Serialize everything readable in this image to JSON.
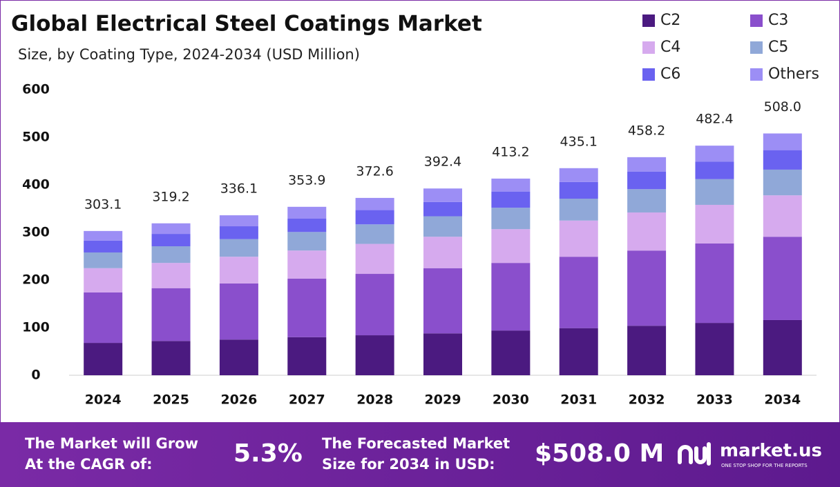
{
  "chart_data": {
    "type": "stacked-bar",
    "title": "Global Electrical Steel Coatings Market",
    "subtitle": "Size, by Coating Type, 2024-2034 (USD Million)",
    "categories": [
      "2024",
      "2025",
      "2026",
      "2027",
      "2028",
      "2029",
      "2030",
      "2031",
      "2032",
      "2033",
      "2034"
    ],
    "series": [
      {
        "name": "C2",
        "color": "#4b1a80",
        "values": [
          68,
          72,
          75,
          80,
          84,
          88,
          94,
          99,
          104,
          110,
          116
        ]
      },
      {
        "name": "C3",
        "color": "#8a4fcc",
        "values": [
          106,
          111,
          118,
          123,
          129,
          137,
          142,
          150,
          158,
          167,
          175
        ]
      },
      {
        "name": "C4",
        "color": "#d6aaee",
        "values": [
          51,
          53,
          56,
          59,
          63,
          66,
          71,
          76,
          80,
          81,
          87
        ]
      },
      {
        "name": "C5",
        "color": "#90a8d8",
        "values": [
          33,
          35,
          37,
          39,
          41,
          43,
          45,
          46,
          49,
          54,
          54
        ]
      },
      {
        "name": "C6",
        "color": "#6a62f0",
        "values": [
          25,
          26,
          27,
          28,
          30,
          30,
          34,
          35,
          37,
          37,
          41
        ]
      },
      {
        "name": "Others",
        "color": "#9c8ef5",
        "values": [
          20.1,
          22.2,
          23.1,
          24.9,
          25.6,
          28.4,
          27.2,
          29.1,
          30.2,
          33.4,
          35
        ]
      }
    ],
    "totals": [
      303.1,
      319.2,
      336.1,
      353.9,
      372.6,
      392.4,
      413.2,
      435.1,
      458.2,
      482.4,
      508.0
    ],
    "total_labels": [
      "303.1",
      "319.2",
      "336.1",
      "353.9",
      "372.6",
      "392.4",
      "413.2",
      "435.1",
      "458.2",
      "482.4",
      "508.0"
    ],
    "ylim": [
      0,
      600
    ],
    "yticks": [
      0,
      100,
      200,
      300,
      400,
      500,
      600
    ],
    "legend": "top-right"
  },
  "footer": {
    "cagr_text_1": "The Market will Grow",
    "cagr_text_2": "At the CAGR of:",
    "cagr": "5.3%",
    "forecast_text_1": "The Forecasted Market",
    "forecast_text_2": "Size for 2034 in USD:",
    "forecast": "$508.0 M",
    "brand": "market.us",
    "tagline": "ONE STOP SHOP FOR THE REPORTS"
  }
}
